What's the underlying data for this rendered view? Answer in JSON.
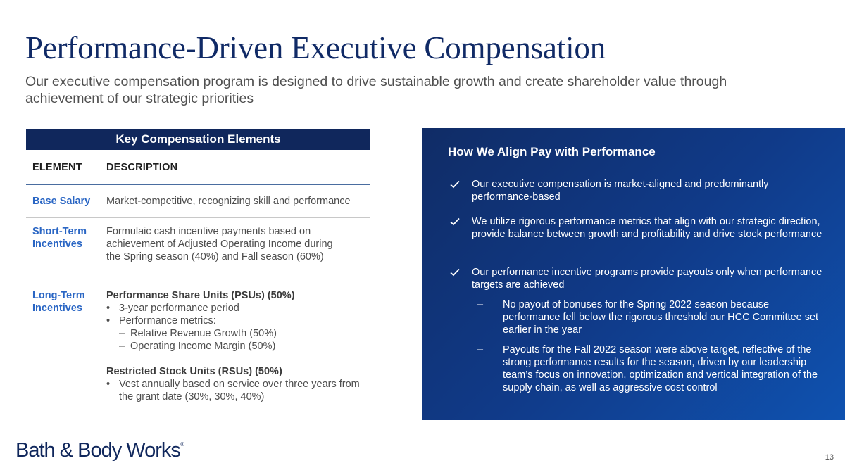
{
  "title": "Performance-Driven Executive Compensation",
  "subtitle": "Our executive compensation program is designed to drive sustainable growth and create shareholder value through achievement of our strategic priorities",
  "table": {
    "header": "Key Compensation Elements",
    "col_element": "ELEMENT",
    "col_description": "DESCRIPTION",
    "base_salary": {
      "label": "Base Salary",
      "desc": "Market-competitive, recognizing skill and performance"
    },
    "short_term": {
      "label_line1": "Short-Term",
      "label_line2": "Incentives",
      "desc": "Formulaic cash incentive payments based on achievement of Adjusted Operating Income during the Spring season (40%) and Fall season (60%)"
    },
    "long_term": {
      "label_line1": "Long-Term",
      "label_line2": "Incentives",
      "psu_title": "Performance Share Units (PSUs) (50%)",
      "psu_bullet1": "3-year performance period",
      "psu_bullet2": "Performance metrics:",
      "psu_sub1": "Relative Revenue Growth (50%)",
      "psu_sub2": "Operating Income Margin (50%)",
      "rsu_title": "Restricted Stock Units (RSUs) (50%)",
      "rsu_bullet1": "Vest annually based on service over three years from the grant date (30%, 30%, 40%)"
    }
  },
  "panel": {
    "title": "How We Align Pay with Performance",
    "check1": "Our executive compensation is market-aligned and predominantly performance-based",
    "check2": "We utilize rigorous performance metrics that align with our strategic direction, provide balance between growth and profitability and drive stock performance",
    "check3": "Our performance incentive programs provide payouts only when performance targets are achieved",
    "sub1": "No payout of bonuses for the Spring 2022 season because performance fell below the rigorous threshold our HCC Committee set earlier in the year",
    "sub2": "Payouts for the Fall 2022 season were above target, reflective of the strong performance results for the season, driven by our leadership team’s focus on innovation, optimization and vertical integration of the supply chain, as well as aggressive cost control",
    "dash": "–"
  },
  "footer": {
    "logo_text": "Bath & Body Works",
    "logo_mark": "®",
    "page_number": "13"
  },
  "colors": {
    "navy": "#10275c",
    "accent_blue": "#2a66c4"
  },
  "icons": {
    "check": "checkmark-icon"
  }
}
